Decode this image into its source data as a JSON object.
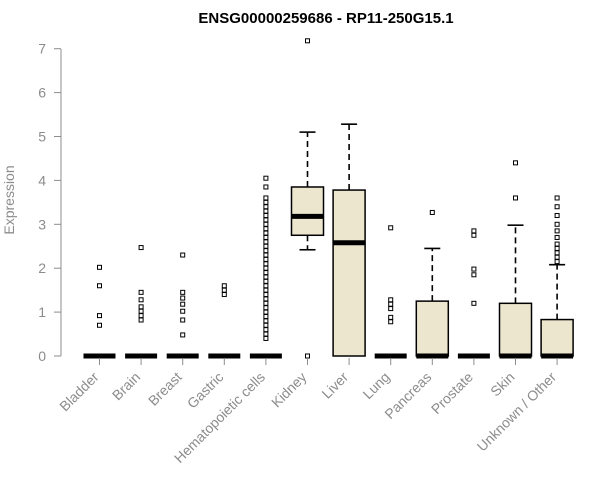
{
  "chart_data": {
    "type": "box",
    "title": "ENSG00000259686 - RP11-250G15.1",
    "xlabel": "",
    "ylabel": "Expression",
    "ylim": [
      0,
      7.2
    ],
    "yticks": [
      0,
      1,
      2,
      3,
      4,
      5,
      6,
      7
    ],
    "box_fill": "#ede6cf",
    "categories": [
      "Bladder",
      "Brain",
      "Breast",
      "Gastric",
      "Hematopoietic cells",
      "Kidney",
      "Liver",
      "Lung",
      "Pancreas",
      "Prostate",
      "Skin",
      "Unknown / Other"
    ],
    "boxes": [
      {
        "q1": 0,
        "median": 0,
        "q3": 0,
        "wlo": 0,
        "whi": 0,
        "outliers": [
          0.7,
          0.92,
          1.6,
          2.02
        ]
      },
      {
        "q1": 0,
        "median": 0,
        "q3": 0,
        "wlo": 0,
        "whi": 0,
        "outliers": [
          0.82,
          0.92,
          1.02,
          1.12,
          1.28,
          1.45,
          2.47
        ]
      },
      {
        "q1": 0,
        "median": 0,
        "q3": 0,
        "wlo": 0,
        "whi": 0,
        "outliers": [
          0.48,
          0.82,
          1.02,
          1.18,
          1.32,
          1.45,
          2.3
        ]
      },
      {
        "q1": 0,
        "median": 0,
        "q3": 0,
        "wlo": 0,
        "whi": 0,
        "outliers": [
          1.4,
          1.5,
          1.6
        ]
      },
      {
        "q1": 0,
        "median": 0,
        "q3": 0,
        "wlo": 0,
        "whi": 0,
        "outliers": [
          0.4,
          0.5,
          0.6,
          0.7,
          0.8,
          0.9,
          1.0,
          1.1,
          1.2,
          1.3,
          1.4,
          1.5,
          1.6,
          1.7,
          1.8,
          1.9,
          2.0,
          2.1,
          2.2,
          2.3,
          2.4,
          2.5,
          2.6,
          2.7,
          2.8,
          2.9,
          3.0,
          3.1,
          3.2,
          3.3,
          3.4,
          3.5,
          3.6,
          3.85,
          4.05
        ]
      },
      {
        "q1": 2.75,
        "median": 3.18,
        "q3": 3.85,
        "wlo": 2.42,
        "whi": 5.1,
        "outliers": [
          0.0,
          7.18
        ]
      },
      {
        "q1": 0,
        "median": 2.58,
        "q3": 3.78,
        "wlo": 0,
        "whi": 5.28,
        "outliers": []
      },
      {
        "q1": 0,
        "median": 0,
        "q3": 0,
        "wlo": 0,
        "whi": 0,
        "outliers": [
          0.78,
          0.88,
          1.08,
          1.18,
          1.28,
          2.92
        ]
      },
      {
        "q1": 0,
        "median": 0,
        "q3": 1.25,
        "wlo": 0,
        "whi": 2.45,
        "outliers": [
          3.27
        ]
      },
      {
        "q1": 0,
        "median": 0,
        "q3": 0,
        "wlo": 0,
        "whi": 0,
        "outliers": [
          1.2,
          1.85,
          1.98,
          2.75,
          2.85
        ]
      },
      {
        "q1": 0,
        "median": 0,
        "q3": 1.2,
        "wlo": 0,
        "whi": 2.98,
        "outliers": [
          3.6,
          4.4
        ]
      },
      {
        "q1": 0,
        "median": 0,
        "q3": 0.83,
        "wlo": 0,
        "whi": 2.08,
        "outliers": [
          2.15,
          2.25,
          2.35,
          2.45,
          2.55,
          2.7,
          2.85,
          3.0,
          3.2,
          3.4,
          3.6
        ]
      }
    ]
  }
}
